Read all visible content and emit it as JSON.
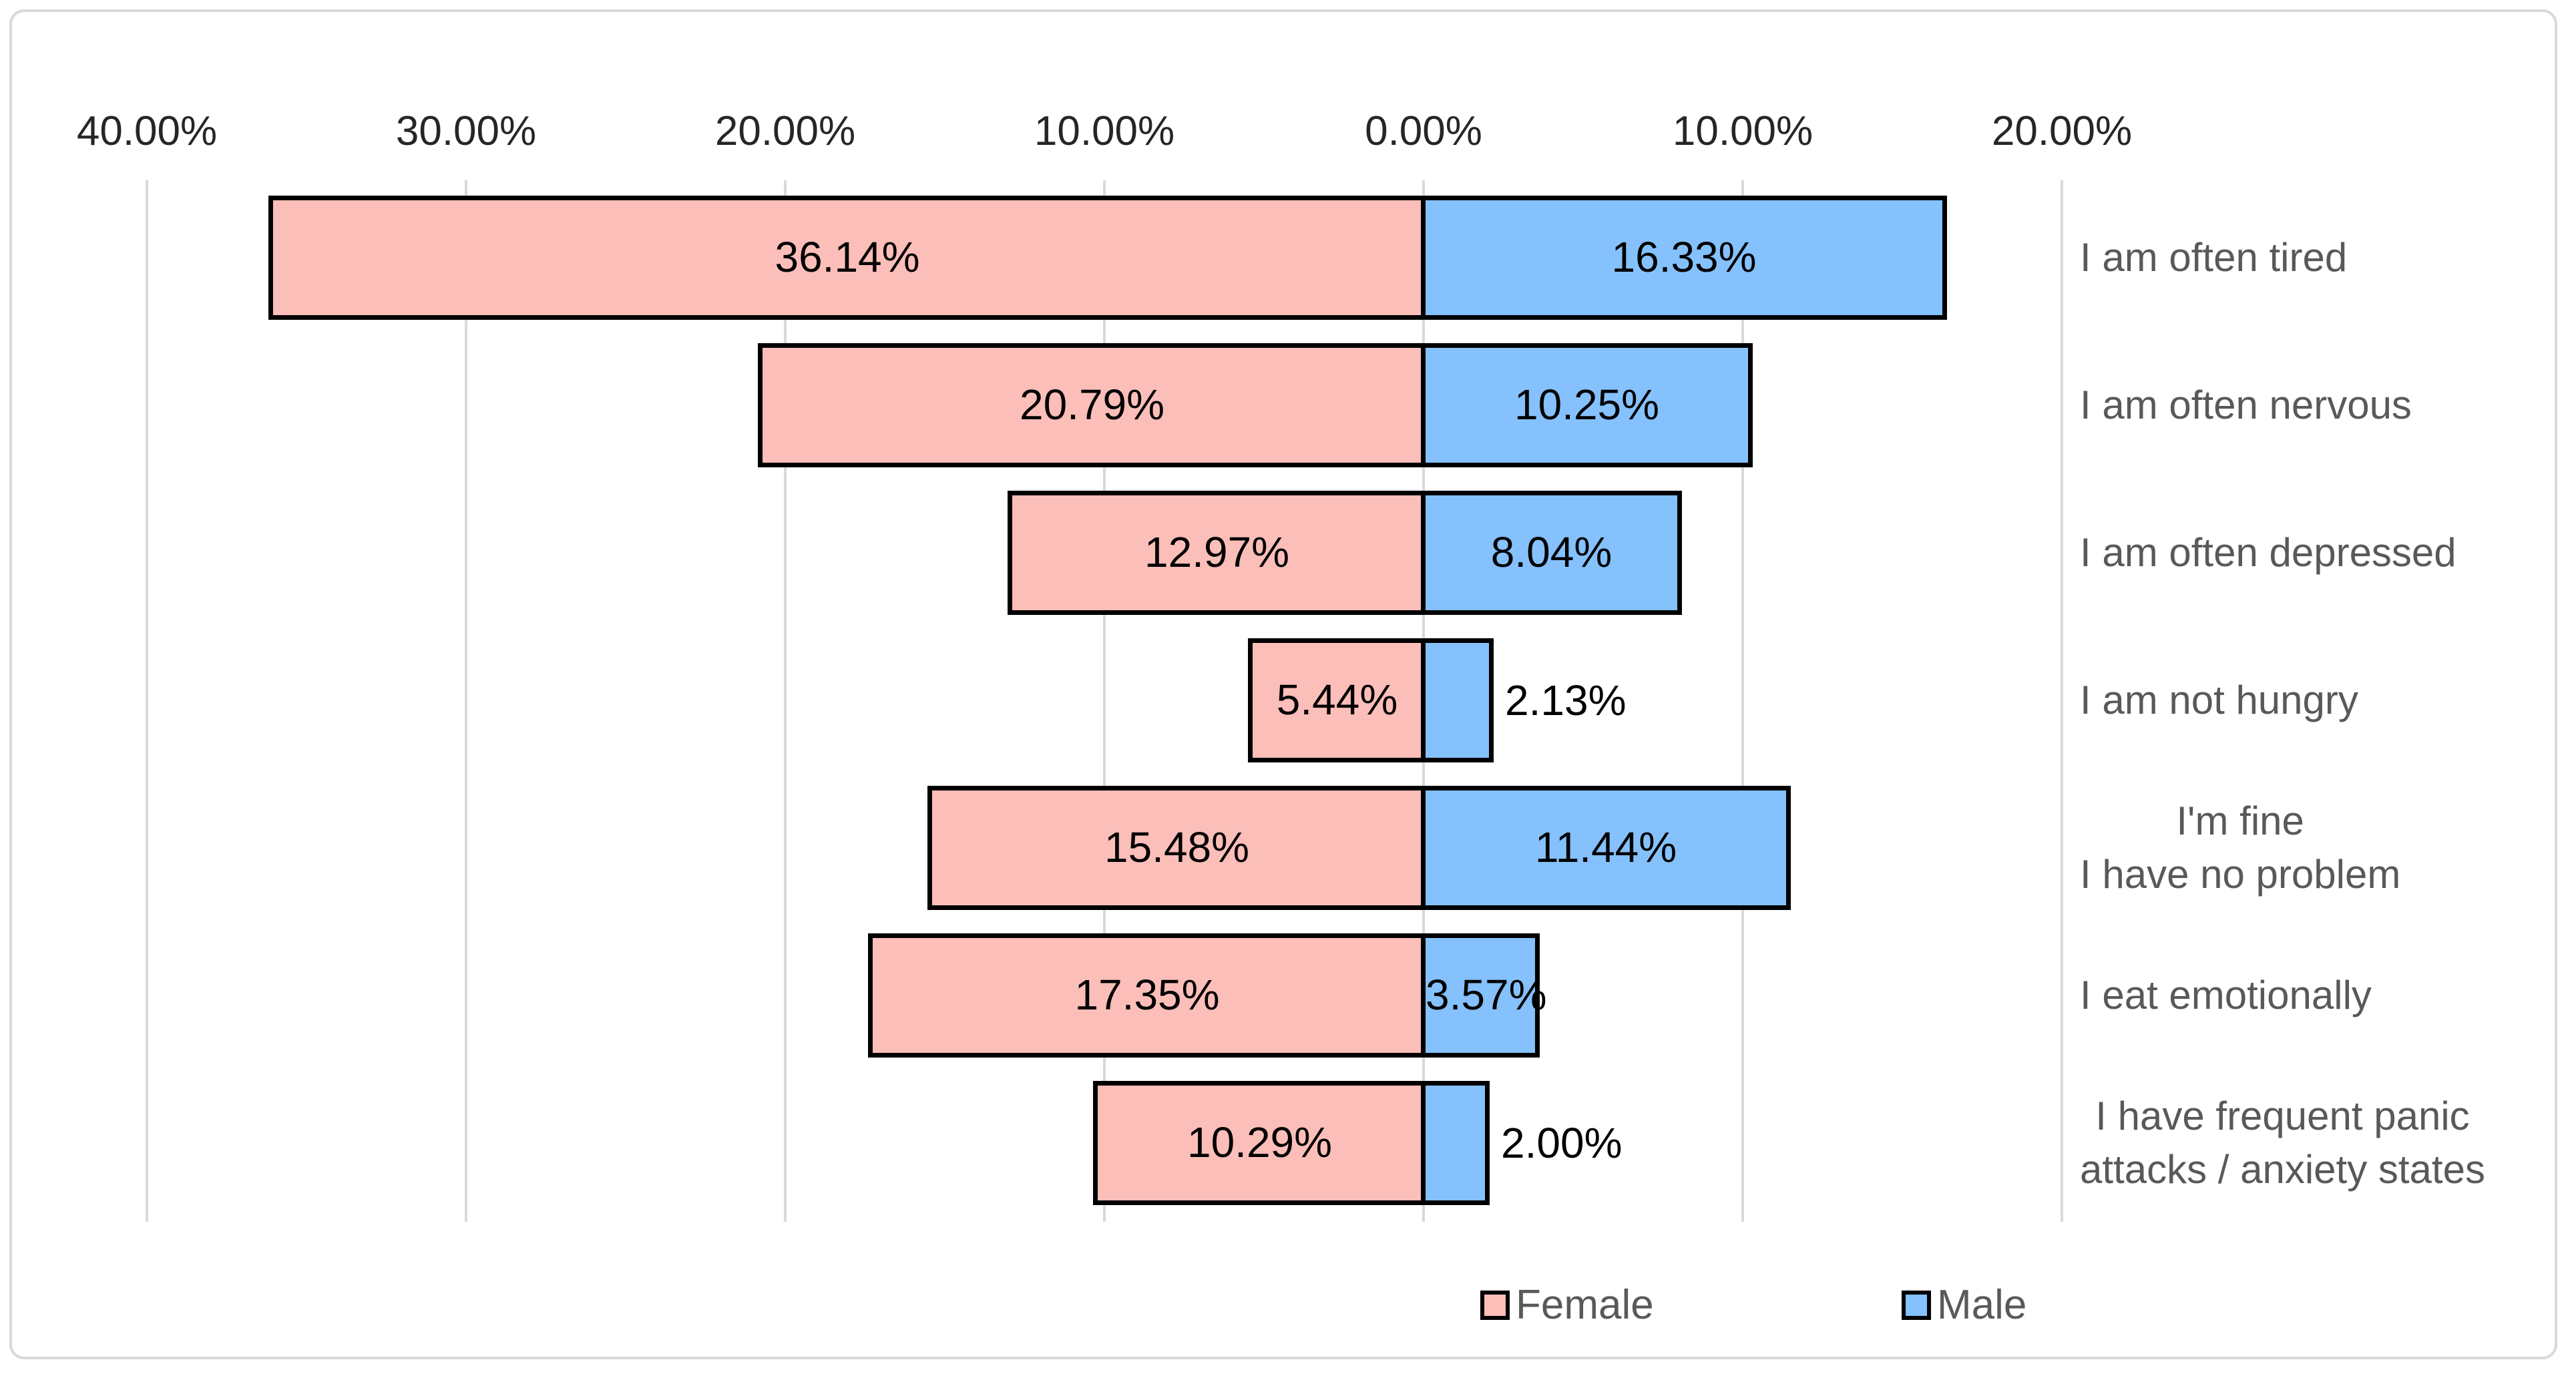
{
  "chart_data": {
    "type": "bar",
    "subtype": "diverging-horizontal-tornado",
    "title": "",
    "categories": [
      "I am often tired",
      "I am often nervous",
      "I am often depressed",
      "I am not hungry",
      "I'm fine\nI have no problem",
      "I eat emotionally",
      "I have frequent panic\nattacks / anxiety states"
    ],
    "series": [
      {
        "name": "Female",
        "side": "left",
        "color": "#fcbeb9",
        "values": [
          36.14,
          20.79,
          12.97,
          5.44,
          15.48,
          17.35,
          10.29
        ],
        "labels": [
          "36.14%",
          "20.79%",
          "12.97%",
          "5.44%",
          "15.48%",
          "17.35%",
          "10.29%"
        ]
      },
      {
        "name": "Male",
        "side": "right",
        "color": "#85c1fc",
        "values": [
          16.33,
          10.25,
          8.04,
          2.13,
          11.44,
          3.57,
          2.0
        ],
        "labels": [
          "16.33%",
          "10.25%",
          "8.04%",
          "2.13%",
          "11.44%",
          "3.57%",
          "2.00%"
        ]
      }
    ],
    "x_axis": {
      "tick_labels": [
        "40.00%",
        "30.00%",
        "20.00%",
        "10.00%",
        "0.00%",
        "10.00%",
        "20.00%"
      ],
      "tick_values": [
        -40,
        -30,
        -20,
        -10,
        0,
        10,
        20
      ],
      "note": "left-side magnitudes displayed as positive percentages",
      "xlim": [
        -40,
        20
      ]
    },
    "grid": true,
    "legend": {
      "position": "bottom",
      "entries": [
        "Female",
        "Male"
      ]
    },
    "colors": {
      "female_fill": "#fcbeb9",
      "male_fill": "#85c1fc",
      "bar_border": "#000000",
      "gridline": "#d9d9d9",
      "frame_border": "#d9d9d9",
      "axis_text": "#262626",
      "category_text": "#595959",
      "legend_text": "#595959",
      "data_label_text": "#000000",
      "background": "#ffffff"
    },
    "value_suffix": "%"
  }
}
